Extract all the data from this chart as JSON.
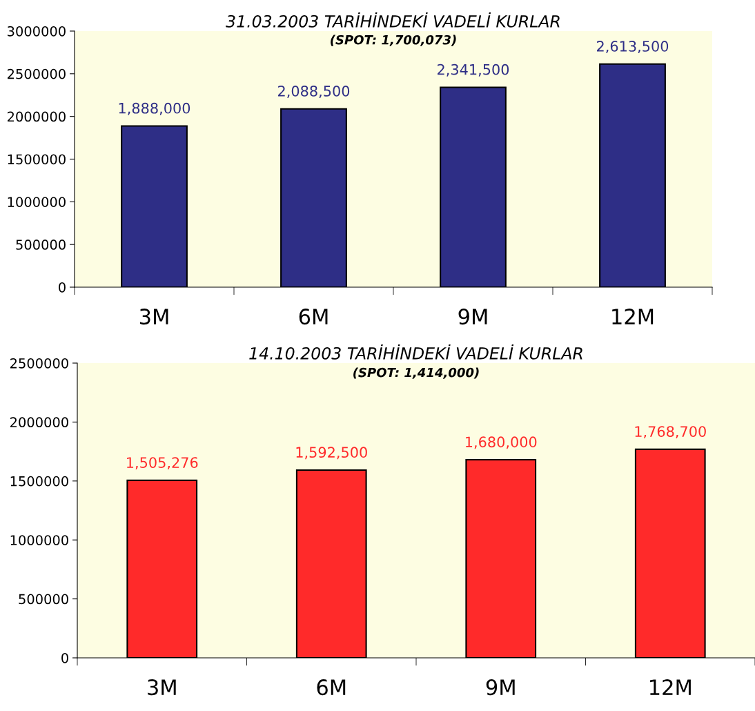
{
  "chart_data": [
    {
      "type": "bar",
      "title": "31.03.2003 TARİHİNDEKİ VADELİ KURLAR",
      "subtitle": "(SPOT: 1,700,073)",
      "categories": [
        "3M",
        "6M",
        "9M",
        "12M"
      ],
      "series": [
        {
          "color": "#2e2e86",
          "values": [
            1888000,
            2088500,
            2341500,
            2613500
          ],
          "value_labels": [
            "1,888,000",
            "2,088,500",
            "2,341,500",
            "2,613,500"
          ]
        }
      ],
      "ylim": [
        0,
        3000000
      ],
      "yticks": [
        0,
        500000,
        1000000,
        1500000,
        2000000,
        2500000,
        3000000
      ]
    },
    {
      "type": "bar",
      "title": "14.10.2003 TARİHİNDEKİ VADELİ KURLAR",
      "subtitle": "(SPOT: 1,414,000)",
      "categories": [
        "3M",
        "6M",
        "9M",
        "12M"
      ],
      "series": [
        {
          "color": "#ff2a2a",
          "values": [
            1505276,
            1592500,
            1680000,
            1768700
          ],
          "value_labels": [
            "1,505,276",
            "1,592,500",
            "1,680,000",
            "1,768,700"
          ]
        }
      ],
      "ylim": [
        0,
        2500000
      ],
      "yticks": [
        0,
        500000,
        1000000,
        1500000,
        2000000,
        2500000
      ]
    }
  ]
}
